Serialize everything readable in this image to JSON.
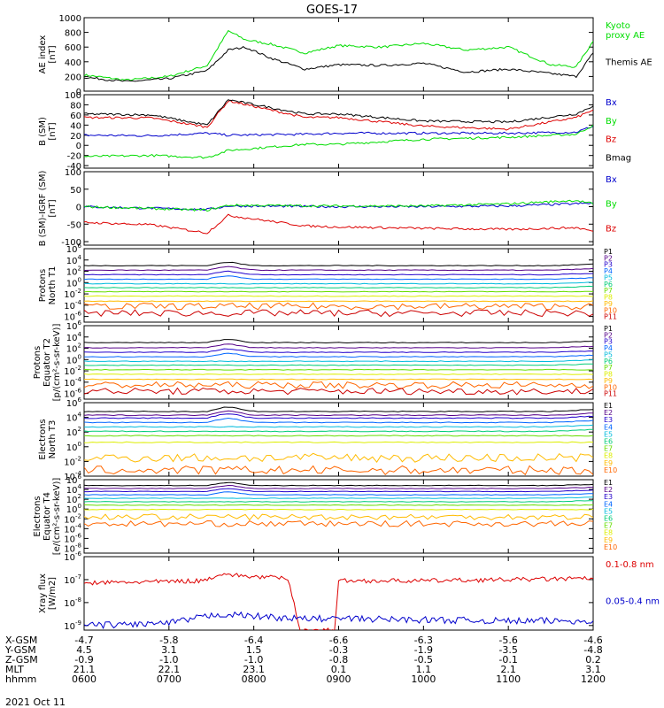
{
  "title": "GOES-17",
  "colors": {
    "black": "#000000",
    "green": "#00dd00",
    "blue": "#0000cc",
    "red": "#dd0000",
    "rainbow": [
      "#000000",
      "#550088",
      "#2200cc",
      "#0066ff",
      "#00bbdd",
      "#00cc77",
      "#66dd00",
      "#ddee00",
      "#ffbb00",
      "#ff6600",
      "#cc0000"
    ]
  },
  "x_axis": {
    "rows": [
      {
        "label": "X-GSM",
        "values": [
          "-4.7",
          "-5.8",
          "-6.4",
          "-6.6",
          "-6.3",
          "-5.6",
          "-4.6"
        ]
      },
      {
        "label": "Y-GSM",
        "values": [
          "4.5",
          "3.1",
          "1.5",
          "-0.3",
          "-1.9",
          "-3.5",
          "-4.8"
        ]
      },
      {
        "label": "Z-GSM",
        "values": [
          "-0.9",
          "-1.0",
          "-1.0",
          "-0.8",
          "-0.5",
          "-0.1",
          "0.2"
        ]
      },
      {
        "label": "MLT",
        "values": [
          "21.1",
          "22.1",
          "23.1",
          "0.1",
          "1.1",
          "2.1",
          "3.1"
        ]
      },
      {
        "label": "hhmm",
        "values": [
          "0600",
          "0700",
          "0800",
          "0900",
          "1000",
          "1100",
          "1200"
        ]
      }
    ],
    "date": "2021 Oct 11"
  },
  "chart_data": [
    {
      "type": "line",
      "ylabel": "AE index\n[nT]",
      "yticks": [
        "1000",
        "800",
        "600",
        "400",
        "200",
        "0"
      ],
      "ylim": [
        0,
        1000
      ],
      "x": [
        "0600",
        "0700",
        "0800",
        "0900",
        "1000",
        "1100",
        "1200"
      ],
      "series": [
        {
          "name": "Kyoto\nproxy AE",
          "color": "green",
          "values": [
            [
              6.0,
              220
            ],
            [
              6.5,
              150
            ],
            [
              7.0,
              200
            ],
            [
              7.45,
              350
            ],
            [
              7.7,
              820
            ],
            [
              7.9,
              700
            ],
            [
              8.2,
              640
            ],
            [
              8.6,
              520
            ],
            [
              9.0,
              620
            ],
            [
              9.5,
              600
            ],
            [
              10.0,
              650
            ],
            [
              10.5,
              560
            ],
            [
              11.0,
              600
            ],
            [
              11.5,
              360
            ],
            [
              11.8,
              330
            ],
            [
              12.0,
              680
            ]
          ]
        },
        {
          "name": "Themis AE",
          "color": "black",
          "values": [
            [
              6.0,
              190
            ],
            [
              6.5,
              130
            ],
            [
              7.0,
              170
            ],
            [
              7.45,
              280
            ],
            [
              7.7,
              560
            ],
            [
              7.9,
              600
            ],
            [
              8.2,
              450
            ],
            [
              8.6,
              300
            ],
            [
              9.0,
              360
            ],
            [
              9.5,
              350
            ],
            [
              10.0,
              380
            ],
            [
              10.5,
              260
            ],
            [
              11.0,
              300
            ],
            [
              11.5,
              240
            ],
            [
              11.8,
              200
            ],
            [
              12.0,
              520
            ]
          ]
        }
      ]
    },
    {
      "type": "line",
      "ylabel": "B (SM)\n[nT]",
      "yticks": [
        "100",
        "80",
        "60",
        "40",
        "20",
        "0",
        "-20",
        "-40"
      ],
      "ylim": [
        -45,
        100
      ],
      "series": [
        {
          "name": "Bx",
          "color": "blue",
          "values": [
            [
              6.0,
              20
            ],
            [
              6.8,
              19
            ],
            [
              7.45,
              24
            ],
            [
              7.7,
              20
            ],
            [
              8.6,
              22
            ],
            [
              9.0,
              24
            ],
            [
              10.0,
              24
            ],
            [
              11.0,
              24
            ],
            [
              11.8,
              26
            ],
            [
              12.0,
              38
            ]
          ]
        },
        {
          "name": "By",
          "color": "green",
          "values": [
            [
              6.0,
              -22
            ],
            [
              6.8,
              -20
            ],
            [
              7.45,
              -24
            ],
            [
              7.7,
              -10
            ],
            [
              8.6,
              2
            ],
            [
              9.0,
              2
            ],
            [
              10.0,
              12
            ],
            [
              11.0,
              16
            ],
            [
              11.8,
              22
            ],
            [
              12.0,
              40
            ]
          ]
        },
        {
          "name": "Bz",
          "color": "red",
          "values": [
            [
              6.0,
              55
            ],
            [
              6.8,
              54
            ],
            [
              7.45,
              36
            ],
            [
              7.7,
              88
            ],
            [
              8.6,
              55
            ],
            [
              9.0,
              55
            ],
            [
              10.0,
              38
            ],
            [
              11.0,
              32
            ],
            [
              11.8,
              55
            ],
            [
              12.0,
              70
            ]
          ]
        },
        {
          "name": "Bmag",
          "color": "black",
          "values": [
            [
              6.0,
              62
            ],
            [
              6.8,
              60
            ],
            [
              7.45,
              40
            ],
            [
              7.7,
              90
            ],
            [
              8.6,
              62
            ],
            [
              9.0,
              62
            ],
            [
              10.0,
              48
            ],
            [
              11.0,
              46
            ],
            [
              11.8,
              62
            ],
            [
              12.0,
              78
            ]
          ]
        }
      ]
    },
    {
      "type": "line",
      "ylabel": "B (SM)-IGRF (SM)\n[nT]",
      "yticks": [
        "100",
        "50",
        "0",
        "-50",
        "-100"
      ],
      "ylim": [
        -110,
        100
      ],
      "series": [
        {
          "name": "Bx",
          "color": "blue",
          "values": [
            [
              6.0,
              0
            ],
            [
              7.45,
              -8
            ],
            [
              7.7,
              2
            ],
            [
              9.0,
              0
            ],
            [
              10.0,
              0
            ],
            [
              11.0,
              2
            ],
            [
              12.0,
              10
            ]
          ]
        },
        {
          "name": "By",
          "color": "green",
          "values": [
            [
              6.0,
              0
            ],
            [
              7.45,
              -10
            ],
            [
              7.7,
              4
            ],
            [
              9.0,
              2
            ],
            [
              10.0,
              2
            ],
            [
              11.0,
              8
            ],
            [
              11.8,
              18
            ],
            [
              12.0,
              8
            ]
          ]
        },
        {
          "name": "Bz",
          "color": "red",
          "values": [
            [
              6.0,
              -45
            ],
            [
              6.8,
              -52
            ],
            [
              7.45,
              -75
            ],
            [
              7.7,
              -25
            ],
            [
              8.6,
              -55
            ],
            [
              9.0,
              -58
            ],
            [
              10.0,
              -62
            ],
            [
              11.0,
              -65
            ],
            [
              11.8,
              -60
            ],
            [
              12.0,
              -70
            ]
          ]
        }
      ]
    },
    {
      "type": "line",
      "ylabel": "Protons\nNorth T1",
      "yticks": [
        "10^6",
        "10^4",
        "10^2",
        "10^0",
        "10^-2",
        "10^-4",
        "10^-6"
      ],
      "ylim_log10": [
        -7,
        6
      ],
      "channels": [
        "P1",
        "P2",
        "P3",
        "P4",
        "P5",
        "P6",
        "P7",
        "P8",
        "P9",
        "P10",
        "P11"
      ],
      "levels_log10": [
        3.0,
        2.2,
        1.4,
        0.6,
        -0.2,
        -0.9,
        -1.6,
        -2.4,
        -3.3,
        -4.2,
        -5.4
      ]
    },
    {
      "type": "line",
      "ylabel": "Protons\nEquator T2\n[p/(cm²-s-sr-keV)]",
      "yticks": [
        "10^6",
        "10^4",
        "10^2",
        "10^0",
        "10^-2",
        "10^-4",
        "10^-6"
      ],
      "ylim_log10": [
        -7,
        6
      ],
      "channels": [
        "P1",
        "P2",
        "P3",
        "P4",
        "P5",
        "P6",
        "P7",
        "P8",
        "P9",
        "P10",
        "P11"
      ],
      "levels_log10": [
        3.0,
        2.1,
        1.3,
        0.5,
        -0.3,
        -1.0,
        -1.8,
        -2.6,
        -3.5,
        -4.5,
        -5.6
      ]
    },
    {
      "type": "line",
      "ylabel": "Electrons\nNorth T3",
      "yticks": [
        "10^6",
        "10^4",
        "10^2",
        "10^0",
        "10^-2",
        "10^-4"
      ],
      "ylim_log10": [
        -4,
        6
      ],
      "channels": [
        "E1",
        "E2",
        "E3",
        "E4",
        "E5",
        "E6",
        "E7",
        "E8",
        "E9",
        "E10"
      ],
      "levels_log10": [
        4.8,
        4.3,
        3.9,
        3.3,
        2.7,
        2.1,
        1.5,
        0.6,
        -1.5,
        -3.2
      ]
    },
    {
      "type": "line",
      "ylabel": "Electrons\nEquator T4\n[e/(cm²-s-sr-keV)]",
      "yticks": [
        "10^6",
        "10^4",
        "10^2",
        "10^0",
        "10^-2",
        "10^-4",
        "10^-6",
        "10^-8"
      ],
      "ylim_log10": [
        -9,
        6
      ],
      "channels": [
        "E1",
        "E2",
        "E3",
        "E4",
        "E5",
        "E6",
        "E7",
        "E8",
        "E9",
        "E10"
      ],
      "levels_log10": [
        4.8,
        4.2,
        3.6,
        2.9,
        2.2,
        1.5,
        0.8,
        -0.1,
        -1.6,
        -3.0
      ]
    },
    {
      "type": "line",
      "ylabel": "Xray flux\n[W/m2]",
      "yticks": [
        "10^-6",
        "10^-7",
        "10^-8",
        "10^-9"
      ],
      "ylim_log10": [
        -9.2,
        -6
      ],
      "series": [
        {
          "name": "0.1-0.8 nm",
          "color": "red",
          "values": [
            [
              6.0,
              -7.15
            ],
            [
              7.4,
              -7.05
            ],
            [
              7.6,
              -6.75
            ],
            [
              7.9,
              -6.85
            ],
            [
              8.4,
              -6.95
            ],
            [
              8.55,
              -9.2
            ],
            [
              8.95,
              -9.2
            ],
            [
              9.0,
              -7.05
            ],
            [
              10.0,
              -7.05
            ],
            [
              11.0,
              -7.0
            ],
            [
              12.0,
              -6.95
            ]
          ]
        },
        {
          "name": "0.05-0.4 nm",
          "color": "blue",
          "values": [
            [
              6.0,
              -9.0
            ],
            [
              7.0,
              -8.9
            ],
            [
              7.6,
              -8.5
            ],
            [
              8.5,
              -8.7
            ],
            [
              9.0,
              -8.7
            ],
            [
              10.0,
              -8.75
            ],
            [
              11.0,
              -8.8
            ],
            [
              12.0,
              -8.8
            ]
          ]
        }
      ]
    }
  ]
}
